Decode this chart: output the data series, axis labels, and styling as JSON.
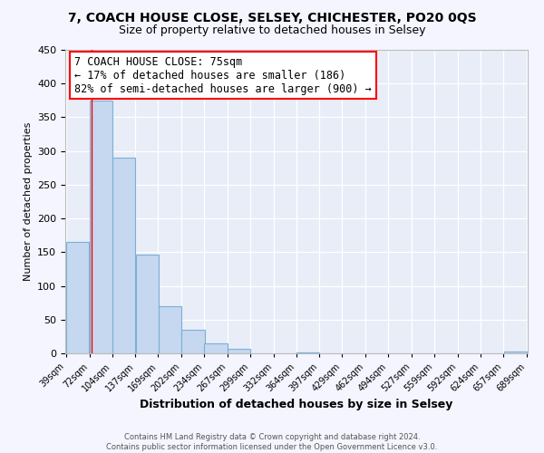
{
  "title": "7, COACH HOUSE CLOSE, SELSEY, CHICHESTER, PO20 0QS",
  "subtitle": "Size of property relative to detached houses in Selsey",
  "xlabel": "Distribution of detached houses by size in Selsey",
  "ylabel": "Number of detached properties",
  "bar_left_edges": [
    39,
    72,
    104,
    137,
    169,
    202,
    234,
    267,
    299,
    332,
    364,
    397,
    429,
    462,
    494,
    527,
    559,
    592,
    624,
    657
  ],
  "bar_heights": [
    165,
    375,
    290,
    147,
    70,
    35,
    15,
    7,
    0,
    0,
    2,
    0,
    0,
    0,
    0,
    0,
    0,
    0,
    0,
    3
  ],
  "bin_width": 33,
  "bar_color": "#c5d8f0",
  "bar_edge_color": "#7bafd4",
  "red_line_x": 75,
  "ylim": [
    0,
    450
  ],
  "yticks": [
    0,
    50,
    100,
    150,
    200,
    250,
    300,
    350,
    400,
    450
  ],
  "xtick_labels": [
    "39sqm",
    "72sqm",
    "104sqm",
    "137sqm",
    "169sqm",
    "202sqm",
    "234sqm",
    "267sqm",
    "299sqm",
    "332sqm",
    "364sqm",
    "397sqm",
    "429sqm",
    "462sqm",
    "494sqm",
    "527sqm",
    "559sqm",
    "592sqm",
    "624sqm",
    "657sqm",
    "689sqm"
  ],
  "annotation_title": "7 COACH HOUSE CLOSE: 75sqm",
  "annotation_line1": "← 17% of detached houses are smaller (186)",
  "annotation_line2": "82% of semi-detached houses are larger (900) →",
  "footer_line1": "Contains HM Land Registry data © Crown copyright and database right 2024.",
  "footer_line2": "Contains public sector information licensed under the Open Government Licence v3.0.",
  "fig_bg_color": "#f5f5ff",
  "plot_bg_color": "#e8edf8",
  "title_fontsize": 10,
  "subtitle_fontsize": 9
}
